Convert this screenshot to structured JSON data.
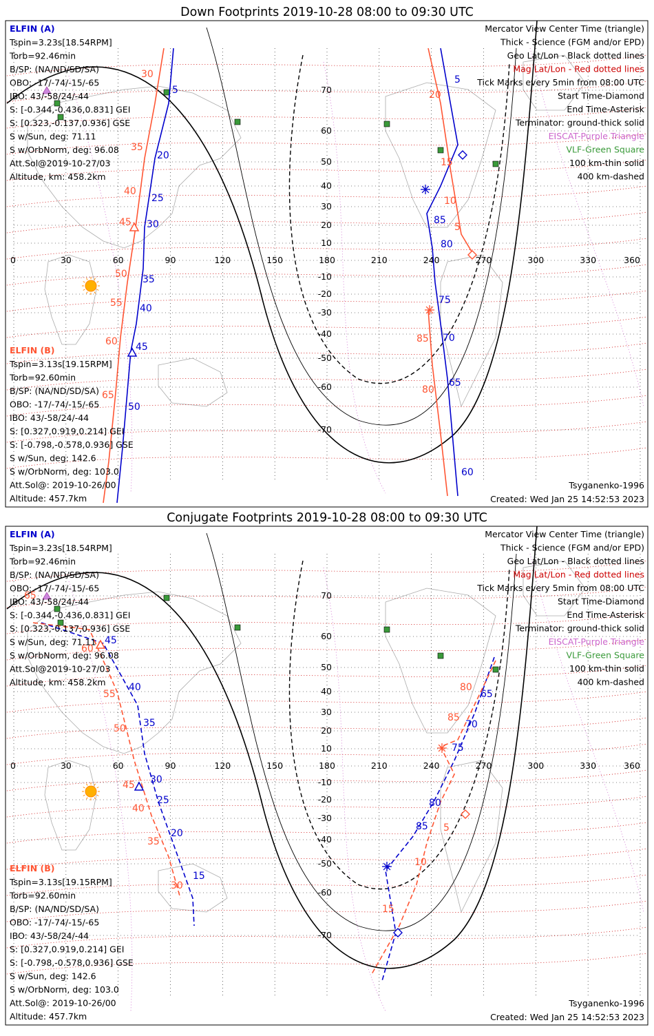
{
  "panels": [
    {
      "title": "Down Footprints 2019-10-28 08:00 to 09:30 UTC",
      "elfin_a": {
        "name": "ELFIN (A)",
        "lines": [
          "Tspin=3.23s[18.54RPM]",
          "Torb=92.46min",
          "B/SP: (NA/ND/SD/SA)",
          "OBO: -17/-74/-15/-65",
          "IBO: 43/-58/24/-44",
          "S: [-0.344,-0.436,0.831] GEI",
          "S: [0.323,-0.137,0.936] GSE",
          "S w/Sun, deg: 71.11",
          "S w/OrbNorm, deg: 96.08",
          "Att.Sol@2019-10-27/03",
          "Altitude, km: 458.2km"
        ]
      },
      "elfin_b": {
        "name": "ELFIN (B)",
        "lines": [
          "Tspin=3.13s[19.15RPM]",
          "Torb=92.60min",
          "B/SP: (NA/ND/SD/SA)",
          "OBO: -17/-74/-15/-65",
          "IBO: 43/-58/24/-44",
          "S: [0.327,0.919,0.214] GEI",
          "S: [-0.798,-0.578,0.936] GSE",
          "S w/Sun, deg: 142.6",
          "S w/OrbNorm, deg: 103.0",
          "Att.Sol@: 2019-10-26/00",
          "Altitude: 457.7km"
        ]
      },
      "legend": [
        "Mercator View Center Time (triangle)",
        "Thick - Science (FGM and/or EPD)",
        "Geo Lat/Lon - Black dotted lines",
        "Mag Lat/Lon - Red dotted lines",
        "Tick Marks every 5min from 08:00 UTC",
        "Start Time-Diamond",
        "End Time-Asterisk",
        "Terminator: ground-thick solid",
        "EISCAT-Purple Triangle",
        "VLF-Green Square",
        "100 km-thin solid",
        "400 km-dashed"
      ],
      "model": "Tsyganenko-1996",
      "created": "Created: Wed Jan 25 14:52:53 2023",
      "track_labels": {
        "a_blue": [
          "5",
          "20",
          "25",
          "30",
          "35",
          "40",
          "45",
          "50"
        ],
        "a_red": [
          "30",
          "35",
          "40",
          "45",
          "50",
          "55",
          "60",
          "65"
        ],
        "b_blue": [
          "5",
          "60",
          "65",
          "70",
          "75",
          "80",
          "85"
        ],
        "b_red": [
          "15",
          "10",
          "5",
          "20",
          "80",
          "85"
        ]
      }
    },
    {
      "title": "Conjugate Footprints 2019-10-28 08:00 to 09:30 UTC",
      "elfin_a": {
        "name": "ELFIN (A)",
        "lines": [
          "Tspin=3.23s[18.54RPM]",
          "Torb=92.46min",
          "B/SP: (NA/ND/SD/SA)",
          "OBO: -17/-74/-15/-65",
          "IBO: 43/-58/24/-44",
          "S: [-0.344,-0.436,0.831] GEI",
          "S: [0.323,-0.137,0.936] GSE",
          "S w/Sun, deg: 71.11",
          "S w/OrbNorm, deg: 96.08",
          "Att.Sol@2019-10-27/03",
          "Altitude, km: 458.2km"
        ]
      },
      "elfin_b": {
        "name": "ELFIN (B)",
        "lines": [
          "Tspin=3.13s[19.15RPM]",
          "Torb=92.60min",
          "B/SP: (NA/ND/SD/SA)",
          "OBO: -17/-74/-15/-65",
          "IBO: 43/-58/24/-44",
          "S: [0.327,0.919,0.214] GEI",
          "S: [-0.798,-0.578,0.936] GSE",
          "S w/Sun, deg: 142.6",
          "S w/OrbNorm, deg: 103.0",
          "Att.Sol@: 2019-10-26/00",
          "Altitude: 457.7km"
        ]
      },
      "legend": [
        "Mercator View Center Time (triangle)",
        "Thick - Science (FGM and/or EPD)",
        "Geo Lat/Lon - Black dotted lines",
        "Mag Lat/Lon - Red dotted lines",
        "Tick Marks every 5min from 08:00 UTC",
        "Start Time-Diamond",
        "End Time-Asterisk",
        "Terminator: ground-thick solid",
        "EISCAT-Purple Triangle",
        "VLF-Green Square",
        "100 km-thin solid",
        "400 km-dashed"
      ],
      "model": "Tsyganenko-1996",
      "created": "Created: Wed Jan 25 14:52:53 2023",
      "track_labels": {
        "a_blue": [
          "45",
          "40",
          "35",
          "30",
          "25",
          "20",
          "15"
        ],
        "a_red": [
          "65",
          "60",
          "55",
          "50",
          "45",
          "40",
          "35",
          "30"
        ],
        "b_blue": [
          "65",
          "70",
          "75",
          "80",
          "85"
        ],
        "b_red": [
          "80",
          "85",
          "5",
          "10",
          "15"
        ]
      }
    }
  ],
  "axes": {
    "lon_ticks": [
      "0",
      "30",
      "60",
      "90",
      "120",
      "150",
      "180",
      "210",
      "240",
      "270",
      "300",
      "330",
      "360"
    ],
    "lat_ticks": [
      "70",
      "60",
      "50",
      "40",
      "30",
      "20",
      "10",
      "0",
      "-10",
      "-20",
      "-30",
      "-40",
      "-50",
      "-60",
      "-70"
    ]
  },
  "colors": {
    "elfin_a": "#0000cc",
    "elfin_b": "#ff5533",
    "mag_grid": "#cc0000",
    "eiscat": "#cc66cc",
    "vlf": "#3a9a3a",
    "sun": "#ffb000"
  }
}
